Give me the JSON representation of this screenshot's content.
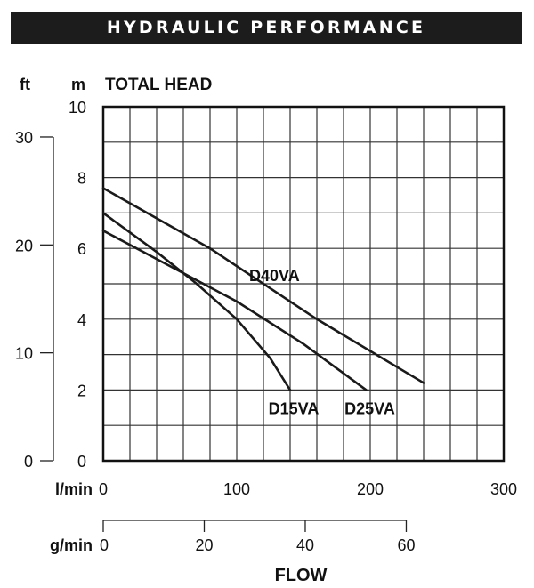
{
  "header": {
    "title": "HYDRAULIC PERFORMANCE"
  },
  "chart_data": {
    "type": "line",
    "title": "HYDRAULIC PERFORMANCE",
    "ylabel": "TOTAL HEAD",
    "xlabel": "FLOW",
    "y_unit_m": "m",
    "y_unit_ft": "ft",
    "x_unit_lmin": "l/min",
    "x_unit_gmin": "g/min",
    "xlim": [
      0,
      300
    ],
    "ylim": [
      0,
      10
    ],
    "ft_range": [
      0,
      32.8
    ],
    "gmin_range": [
      0,
      79.3
    ],
    "x_ticks": [
      "0",
      "100",
      "200",
      "300"
    ],
    "y_ticks": [
      "0",
      "2",
      "4",
      "6",
      "8",
      "10"
    ],
    "ft_ticks": [
      "0",
      "10",
      "20",
      "30"
    ],
    "gmin_ticks": [
      "0",
      "20",
      "40",
      "60"
    ],
    "grid": true,
    "series": [
      {
        "name": "D15VA",
        "x": [
          0,
          40,
          70,
          100,
          125,
          140
        ],
        "y": [
          7.0,
          5.9,
          5.0,
          4.0,
          2.9,
          2.0
        ]
      },
      {
        "name": "D25VA",
        "x": [
          0,
          50,
          100,
          150,
          197
        ],
        "y": [
          6.5,
          5.5,
          4.5,
          3.3,
          2.0
        ]
      },
      {
        "name": "D40VA",
        "x": [
          0,
          80,
          160,
          240
        ],
        "y": [
          7.7,
          6.0,
          4.0,
          2.2
        ]
      }
    ],
    "series_colors": [
      "#1a1a1a",
      "#1a1a1a",
      "#1a1a1a"
    ]
  }
}
